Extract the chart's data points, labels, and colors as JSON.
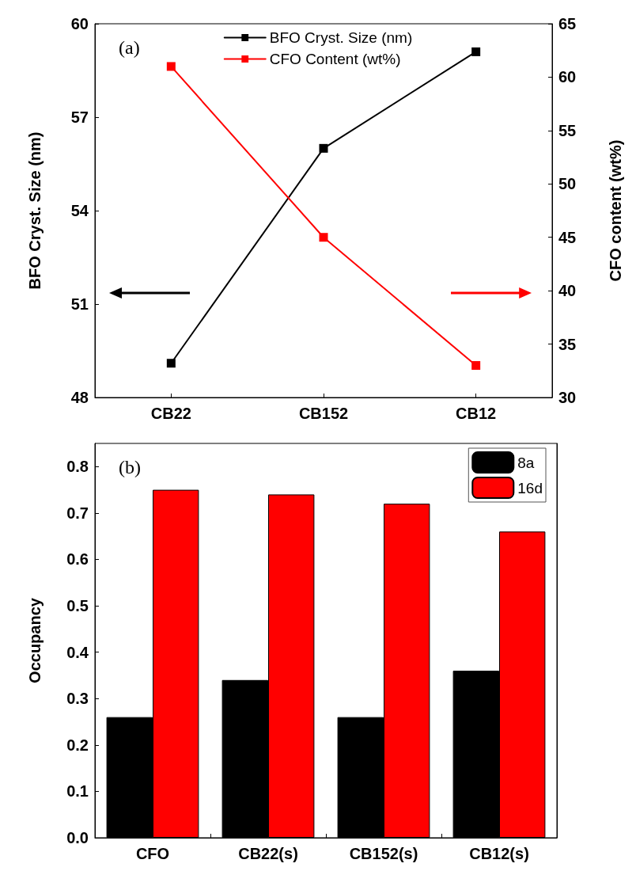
{
  "chart_data": [
    {
      "type": "line",
      "categories": [
        "CB22",
        "CB152",
        "CB12"
      ],
      "ylabel": "BFO Cryst. Size (nm)",
      "y2label": "CFO content (wt%)",
      "ylim": [
        48,
        60
      ],
      "yticks": [
        48,
        51,
        54,
        57,
        60
      ],
      "y2lim": [
        30,
        65
      ],
      "y2ticks": [
        30,
        35,
        40,
        45,
        50,
        55,
        60,
        65
      ],
      "legend": "top",
      "marker": "square",
      "line_style": "solid",
      "grid": false,
      "annotations": [
        "(a)"
      ],
      "series": [
        {
          "name": "BFO Cryst. Size (nm)",
          "color": "#000000",
          "values": [
            49.1,
            56.0,
            59.1
          ]
        },
        {
          "name": "CFO Content (wt%)",
          "color": "#ff0000",
          "values": [
            61,
            45,
            33
          ],
          "axis": "y2"
        }
      ]
    },
    {
      "type": "bar",
      "categories": [
        "CFO",
        "CB22(s)",
        "CB152(s)",
        "CB12(s)"
      ],
      "ylabel": "Occupancy",
      "ylim": [
        0,
        0.85
      ],
      "yticks": [
        {
          "value": 0,
          "label": "0.0"
        },
        0.1,
        0.2,
        0.3,
        0.4,
        0.5,
        0.6,
        0.7,
        0.8
      ],
      "legend": "top right",
      "grid": false,
      "annotations": [
        "(b)"
      ],
      "series": [
        {
          "name": "8a",
          "color": "#000000",
          "values": [
            0.26,
            0.34,
            0.26,
            0.36
          ]
        },
        {
          "name": "16d",
          "color": "#ff0000",
          "values": [
            0.75,
            0.74,
            0.72,
            0.66
          ]
        }
      ]
    }
  ]
}
